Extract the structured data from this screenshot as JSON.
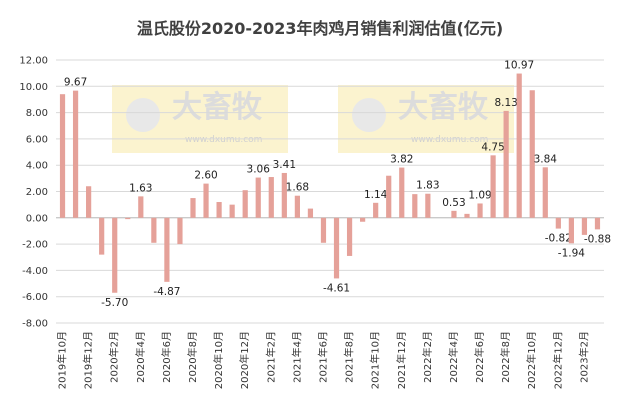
{
  "chart_data": {
    "type": "bar",
    "title": "温氏股份2020-2023年肉鸡月销售利润估值(亿元)",
    "watermark": "大畜牧",
    "watermark_url": "www.dxumu.com",
    "categories": [
      "2019年10月",
      null,
      "2019年12月",
      null,
      "2020年2月",
      null,
      "2020年4月",
      null,
      "2020年6月",
      null,
      "2020年8月",
      null,
      "2020年10月",
      null,
      "2020年12月",
      null,
      "2021年2月",
      null,
      "2021年4月",
      null,
      "2021年6月",
      null,
      "2021年8月",
      null,
      "2021年10月",
      null,
      "2021年12月",
      null,
      "2022年2月",
      null,
      "2022年4月",
      null,
      "2022年6月",
      null,
      "2022年8月",
      null,
      "2022年10月",
      null,
      "2022年12月",
      null,
      "2023年2月",
      null
    ],
    "values": [
      9.4,
      9.67,
      2.4,
      -2.8,
      -5.7,
      -0.1,
      1.63,
      -1.9,
      -4.87,
      -2.0,
      1.5,
      2.6,
      1.2,
      1.0,
      2.1,
      3.06,
      3.1,
      3.41,
      1.68,
      0.7,
      -1.9,
      -4.61,
      -2.9,
      -0.3,
      1.14,
      3.2,
      3.82,
      1.8,
      1.83,
      null,
      0.53,
      0.3,
      1.09,
      4.75,
      8.13,
      10.97,
      9.7,
      3.84,
      -0.82,
      -1.94,
      -1.3,
      -0.88
    ],
    "value_labels": [
      null,
      "9.67",
      null,
      null,
      "-5.70",
      null,
      "1.63",
      null,
      "-4.87",
      null,
      null,
      "2.60",
      null,
      null,
      null,
      "3.06",
      null,
      "3.41",
      "1.68",
      null,
      null,
      "-4.61",
      null,
      null,
      "1.14",
      null,
      "3.82",
      null,
      "1.83",
      null,
      "0.53",
      null,
      "1.09",
      "4.75",
      "8.13",
      "10.97",
      null,
      "3.84",
      "-0.82",
      "-1.94",
      null,
      "-0.88"
    ],
    "color": "#e5a199",
    "ylim": [
      -8,
      12
    ],
    "yticks": [
      {
        "value": -8,
        "label": "-8.00"
      },
      {
        "value": -6,
        "label": "-6.00"
      },
      {
        "value": -4,
        "label": "-4.00"
      },
      {
        "value": -2,
        "label": "-2.00"
      },
      {
        "value": 0,
        "label": "0.00"
      },
      {
        "value": 2,
        "label": "2.00"
      },
      {
        "value": 4,
        "label": "4.00"
      },
      {
        "value": 6,
        "label": "6.00"
      },
      {
        "value": 8,
        "label": "8.00"
      },
      {
        "value": 10,
        "label": "10.00"
      },
      {
        "value": 12,
        "label": "12.00"
      }
    ],
    "grid": true
  }
}
